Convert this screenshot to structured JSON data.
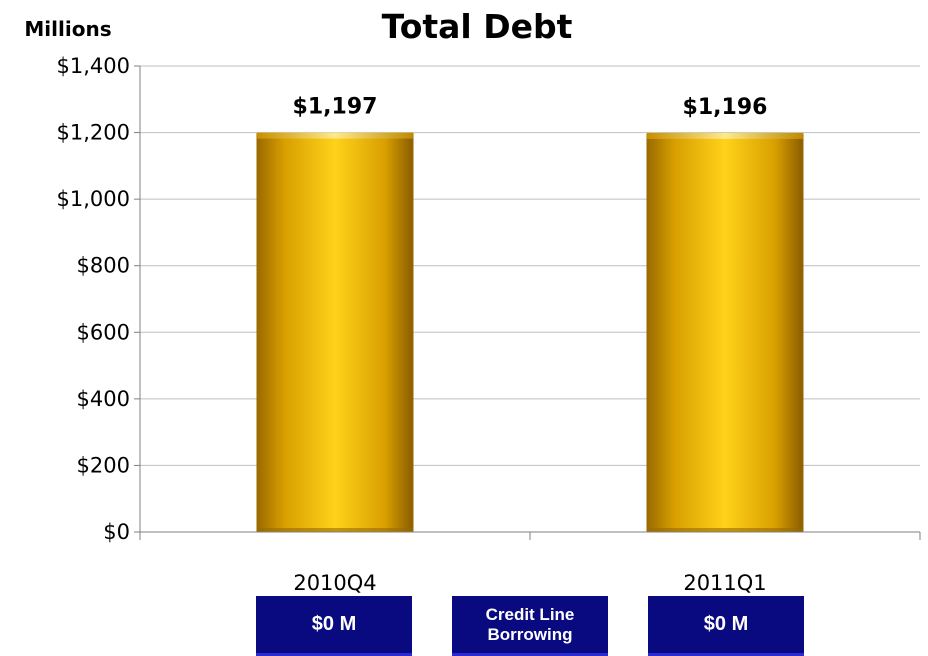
{
  "colors": {
    "bar": "#f2b800",
    "bar_light": "#ffd21a",
    "bar_dark": "#9a6a00",
    "box_bg": "#0a0a80",
    "gridline": "#bfbfbf",
    "axis": "#808080"
  },
  "chart_data": {
    "type": "bar",
    "title": "Total Debt",
    "ylabel": "Millions",
    "xlabel": "",
    "categories": [
      "2010Q4",
      "2011Q1"
    ],
    "values": [
      1197,
      1196
    ],
    "data_labels": [
      "$1,197",
      "$1,196"
    ],
    "ylim": [
      0,
      1400
    ],
    "yticks": [
      0,
      200,
      400,
      600,
      800,
      1000,
      1200,
      1400
    ],
    "ytick_labels": [
      "$0",
      "$200",
      "$400",
      "$600",
      "$800",
      "$1,000",
      "$1,200",
      "$1,400"
    ],
    "grid": true,
    "legend": "none"
  },
  "credit_line": {
    "caption_line1": "Credit Line",
    "caption_line2": "Borrowing",
    "values": [
      "$0 M",
      "$0 M"
    ]
  }
}
